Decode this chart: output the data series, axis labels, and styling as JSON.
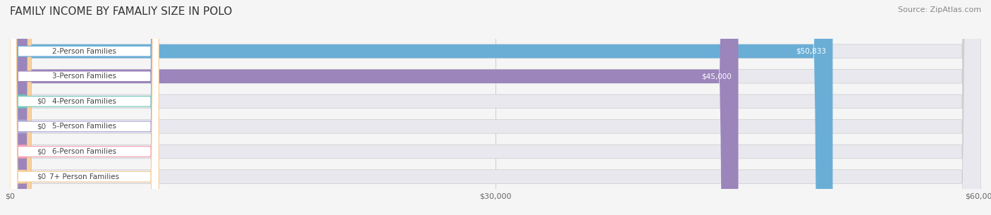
{
  "title": "FAMILY INCOME BY FAMALIY SIZE IN POLO",
  "source": "Source: ZipAtlas.com",
  "categories": [
    "2-Person Families",
    "3-Person Families",
    "4-Person Families",
    "5-Person Families",
    "6-Person Families",
    "7+ Person Families"
  ],
  "values": [
    50833,
    45000,
    0,
    0,
    0,
    0
  ],
  "bar_colors": [
    "#6aaed6",
    "#9b85bb",
    "#70c7b8",
    "#a9a9d6",
    "#f4a0b0",
    "#f7d09a"
  ],
  "xlim": [
    0,
    60000
  ],
  "xticks": [
    0,
    30000,
    60000
  ],
  "xticklabels": [
    "$0",
    "$30,000",
    "$60,000"
  ],
  "background_color": "#f5f5f5",
  "bar_background_color": "#e8e8ee",
  "title_fontsize": 11,
  "source_fontsize": 8,
  "bar_height": 0.55,
  "label_fontsize": 7.5,
  "value_fontsize": 7.5
}
